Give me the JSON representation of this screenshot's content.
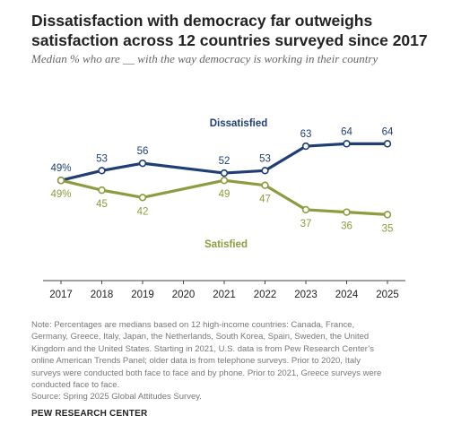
{
  "header": {
    "title": "Dissatisfaction with democracy far outweighs satisfaction across 12 countries surveyed since 2017",
    "subtitle": "Median % who are __ with the way democracy is working in their country"
  },
  "chart_data": {
    "type": "line",
    "x": [
      "2017",
      "2018",
      "2019",
      "2020",
      "2021",
      "2022",
      "2023",
      "2024",
      "2025"
    ],
    "xlim": [
      2017,
      2025
    ],
    "ylim": [
      30,
      70
    ],
    "grid": false,
    "series": [
      {
        "name": "Dissatisfied",
        "color": "#1f3f74",
        "points": [
          {
            "x": 2017,
            "y": 49,
            "label": "49%"
          },
          {
            "x": 2018,
            "y": 53,
            "label": "53"
          },
          {
            "x": 2019,
            "y": 56,
            "label": "56"
          },
          {
            "x": 2021,
            "y": 52,
            "label": "52"
          },
          {
            "x": 2022,
            "y": 53,
            "label": "53"
          },
          {
            "x": 2023,
            "y": 63,
            "label": "63"
          },
          {
            "x": 2024,
            "y": 64,
            "label": "64"
          },
          {
            "x": 2025,
            "y": 64,
            "label": "64"
          }
        ]
      },
      {
        "name": "Satisfied",
        "color": "#8e9b3e",
        "points": [
          {
            "x": 2017,
            "y": 49,
            "label": "49%"
          },
          {
            "x": 2018,
            "y": 45,
            "label": "45"
          },
          {
            "x": 2019,
            "y": 42,
            "label": "42"
          },
          {
            "x": 2021,
            "y": 49,
            "label": "49"
          },
          {
            "x": 2022,
            "y": 47,
            "label": "47"
          },
          {
            "x": 2023,
            "y": 37,
            "label": "37"
          },
          {
            "x": 2024,
            "y": 36,
            "label": "36"
          },
          {
            "x": 2025,
            "y": 35,
            "label": "35"
          }
        ]
      }
    ]
  },
  "notes": [
    "Note: Percentages are medians based on 12 high-income countries: Canada, France,",
    "Germany, Greece, Italy, Japan, the Netherlands, South Korea, Spain, Sweden, the United",
    "Kingdom and the United States. Starting in 2021, U.S. data is from Pew Research Center’s",
    "online American Trends Panel; older data is from telephone surveys. Prior to 2020, Italy",
    "surveys were conducted both face to face and by phone. Prior to 2021, Greece surveys were",
    "conducted face to face.",
    "Source: Spring 2025 Global Attitudes Survey."
  ],
  "credit": "PEW RESEARCH CENTER",
  "colors": {
    "dissatisfied": "#1f3f74",
    "satisfied": "#8e9b3e",
    "axis": "#444444",
    "top_bar": "#ffffff"
  }
}
